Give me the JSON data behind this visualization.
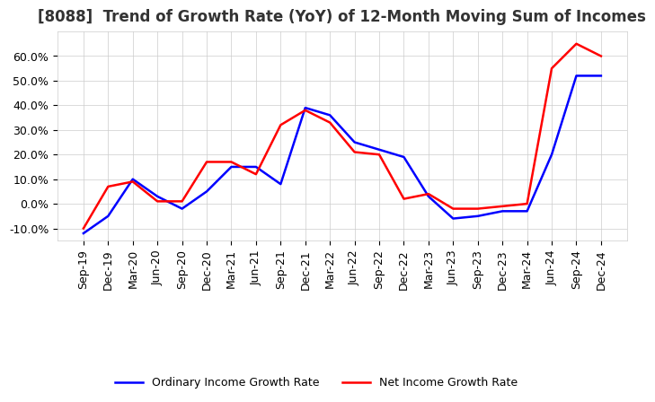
{
  "title": "[8088]  Trend of Growth Rate (YoY) of 12-Month Moving Sum of Incomes",
  "x_labels": [
    "Sep-19",
    "Dec-19",
    "Mar-20",
    "Jun-20",
    "Sep-20",
    "Dec-20",
    "Mar-21",
    "Jun-21",
    "Sep-21",
    "Dec-21",
    "Mar-22",
    "Jun-22",
    "Sep-22",
    "Dec-22",
    "Mar-23",
    "Jun-23",
    "Sep-23",
    "Dec-23",
    "Mar-24",
    "Jun-24",
    "Sep-24",
    "Dec-24"
  ],
  "ordinary_income": [
    -12,
    -5,
    10,
    3,
    -2,
    5,
    15,
    15,
    8,
    39,
    36,
    25,
    22,
    19,
    3,
    -6,
    -5,
    -3,
    -3,
    20,
    52,
    52
  ],
  "net_income": [
    -10,
    7,
    9,
    1,
    1,
    17,
    17,
    12,
    32,
    38,
    33,
    21,
    20,
    2,
    4,
    -2,
    -2,
    -1,
    0,
    55,
    65,
    60
  ],
  "ordinary_color": "#0000FF",
  "net_color": "#FF0000",
  "ylim": [
    -15,
    70
  ],
  "yticks": [
    -10,
    0,
    10,
    20,
    30,
    40,
    50,
    60
  ],
  "legend_labels": [
    "Ordinary Income Growth Rate",
    "Net Income Growth Rate"
  ],
  "background_color": "#FFFFFF",
  "grid_color": "#CCCCCC",
  "title_fontsize": 12,
  "tick_fontsize": 9,
  "legend_fontsize": 9
}
